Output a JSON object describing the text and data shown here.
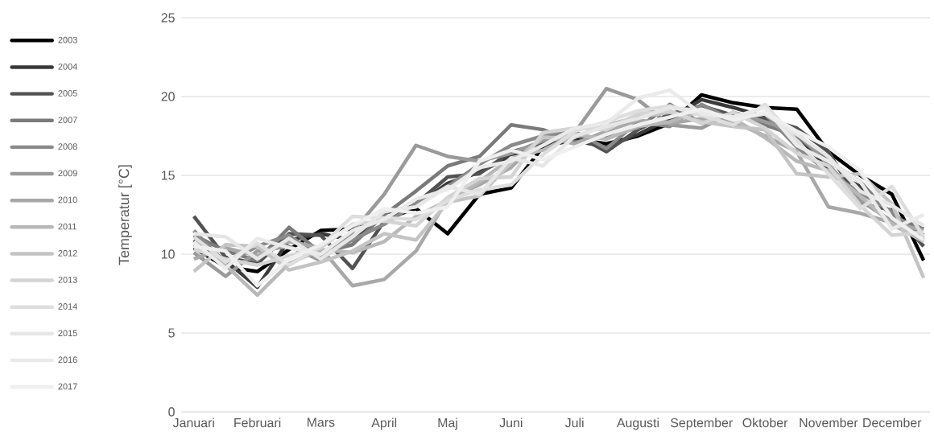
{
  "chart_data": {
    "type": "line",
    "ylabel": "Temperatur [°C]",
    "categories": [
      "Januari",
      null,
      "Februari",
      null,
      "Mars",
      null,
      "April",
      null,
      "Maj",
      null,
      "Juni",
      null,
      "Juli",
      null,
      "Augusti",
      null,
      "September",
      null,
      "Oktober",
      null,
      "November",
      null,
      "December",
      null
    ],
    "ylim": [
      0,
      25
    ],
    "yticks": [
      0,
      5,
      10,
      15,
      20,
      25
    ],
    "grid": "y",
    "legend": "left",
    "marker": "none",
    "line_style": "solid",
    "series": [
      {
        "name": "2003",
        "color": "#000000",
        "values": [
          10.4,
          9.2,
          8.9,
          10.3,
          11.5,
          11.6,
          12.2,
          12.9,
          11.3,
          13.8,
          14.2,
          16.8,
          17.3,
          17.0,
          17.5,
          18.3,
          20.1,
          19.6,
          19.3,
          19.2,
          16.5,
          15.0,
          13.8,
          9.6
        ]
      },
      {
        "name": "2004",
        "color": "#3a3a3a",
        "values": [
          10.9,
          9.6,
          7.9,
          10.9,
          11.3,
          10.9,
          12.6,
          13.1,
          14.5,
          15.2,
          16.2,
          16.9,
          17.2,
          16.8,
          17.6,
          18.6,
          19.8,
          19.3,
          18.7,
          17.6,
          15.3,
          14.3,
          12.5,
          11.2
        ]
      },
      {
        "name": "2005",
        "color": "#525252",
        "values": [
          12.4,
          9.8,
          9.4,
          11.3,
          11.2,
          9.1,
          12.1,
          13.2,
          14.9,
          15.1,
          16.5,
          17.0,
          17.6,
          16.5,
          17.9,
          18.9,
          19.4,
          18.8,
          18.6,
          18.0,
          16.5,
          13.2,
          12.8,
          10.5
        ]
      },
      {
        "name": "2007",
        "color": "#7a7a7a",
        "values": [
          11.2,
          10.2,
          9.6,
          11.7,
          10.1,
          10.6,
          12.5,
          14.0,
          15.6,
          16.2,
          18.2,
          17.9,
          17.1,
          17.5,
          18.0,
          19.5,
          18.3,
          18.9,
          18.2,
          17.5,
          15.9,
          14.6,
          12.4,
          11.6
        ]
      },
      {
        "name": "2008",
        "color": "#8a8a8a",
        "values": [
          11.5,
          9.4,
          10.5,
          11.2,
          9.8,
          10.9,
          11.9,
          13.2,
          14.3,
          15.7,
          16.9,
          17.5,
          17.8,
          16.7,
          18.4,
          18.1,
          19.5,
          18.5,
          18.9,
          16.8,
          15.2,
          13.9,
          12.7,
          10.9
        ]
      },
      {
        "name": "2009",
        "color": "#9a9a9a",
        "values": [
          10.1,
          8.6,
          10.2,
          10.5,
          9.6,
          11.4,
          13.8,
          16.9,
          16.2,
          15.9,
          16.4,
          17.2,
          17.7,
          20.5,
          19.8,
          18.2,
          18.0,
          19.0,
          18.4,
          17.7,
          15.7,
          13.4,
          12.1,
          11.0
        ]
      },
      {
        "name": "2010",
        "color": "#a8a8a8",
        "values": [
          9.7,
          10.4,
          9.9,
          10.8,
          10.4,
          8.0,
          8.4,
          10.2,
          13.5,
          14.4,
          15.5,
          17.5,
          17.0,
          17.8,
          18.5,
          18.3,
          18.6,
          18.4,
          17.5,
          16.5,
          13.0,
          12.6,
          12.0,
          11.5
        ]
      },
      {
        "name": "2011",
        "color": "#b8b8b8",
        "values": [
          10.6,
          9.3,
          7.4,
          9.4,
          10.3,
          10.1,
          10.8,
          12.4,
          13.4,
          14.6,
          16.1,
          16.6,
          17.6,
          17.3,
          18.1,
          18.4,
          19.1,
          18.6,
          17.4,
          15.9,
          15.3,
          13.7,
          11.9,
          10.8
        ]
      },
      {
        "name": "2012",
        "color": "#c4c4c4",
        "values": [
          8.9,
          10.6,
          10.5,
          9.0,
          9.5,
          10.2,
          11.3,
          10.9,
          13.3,
          13.7,
          15.8,
          17.4,
          17.4,
          18.2,
          18.7,
          19.0,
          18.4,
          18.1,
          17.9,
          15.1,
          14.9,
          15.1,
          13.2,
          8.5
        ]
      },
      {
        "name": "2013",
        "color": "#d4d4d4",
        "values": [
          10.3,
          9.7,
          9.3,
          9.9,
          10.4,
          11.9,
          12.1,
          11.8,
          13.6,
          14.8,
          14.9,
          17.7,
          18.0,
          17.9,
          18.9,
          19.1,
          18.3,
          19.0,
          18.0,
          16.4,
          15.6,
          13.1,
          11.2,
          11.4
        ]
      },
      {
        "name": "2014",
        "color": "#dedede",
        "values": [
          11.1,
          9.5,
          10.7,
          9.3,
          10.5,
          12.4,
          12.3,
          12.2,
          13.4,
          14.1,
          14.4,
          16.3,
          17.8,
          18.4,
          19.1,
          19.4,
          18.8,
          18.2,
          19.5,
          17.2,
          15.1,
          12.9,
          14.3,
          11.1
        ]
      },
      {
        "name": "2015",
        "color": "#e6e6e6",
        "values": [
          11.3,
          11.1,
          9.7,
          11.0,
          9.7,
          11.1,
          12.7,
          13.0,
          14.3,
          13.8,
          16.1,
          15.6,
          17.5,
          18.1,
          18.6,
          19.3,
          19.1,
          18.6,
          18.9,
          17.6,
          16.2,
          14.0,
          13.1,
          11.8
        ]
      },
      {
        "name": "2016",
        "color": "#eaeaea",
        "values": [
          10.8,
          9.1,
          11.0,
          10.4,
          10.0,
          11.5,
          12.2,
          13.5,
          14.1,
          15.5,
          15.9,
          16.9,
          18.0,
          18.3,
          19.9,
          20.4,
          18.9,
          18.7,
          19.3,
          16.9,
          15.9,
          14.6,
          11.6,
          12.5
        ]
      },
      {
        "name": "2017",
        "color": "#efefef",
        "values": [
          10.5,
          10.2,
          8.0,
          9.7,
          10.6,
          11.8,
          12.9,
          12.6,
          13.0,
          15.9,
          16.6,
          16.0,
          16.8,
          17.6,
          18.2,
          18.7,
          19.2,
          18.5,
          19.0,
          17.8,
          16.8,
          15.3,
          12.3,
          10.9
        ]
      }
    ]
  }
}
